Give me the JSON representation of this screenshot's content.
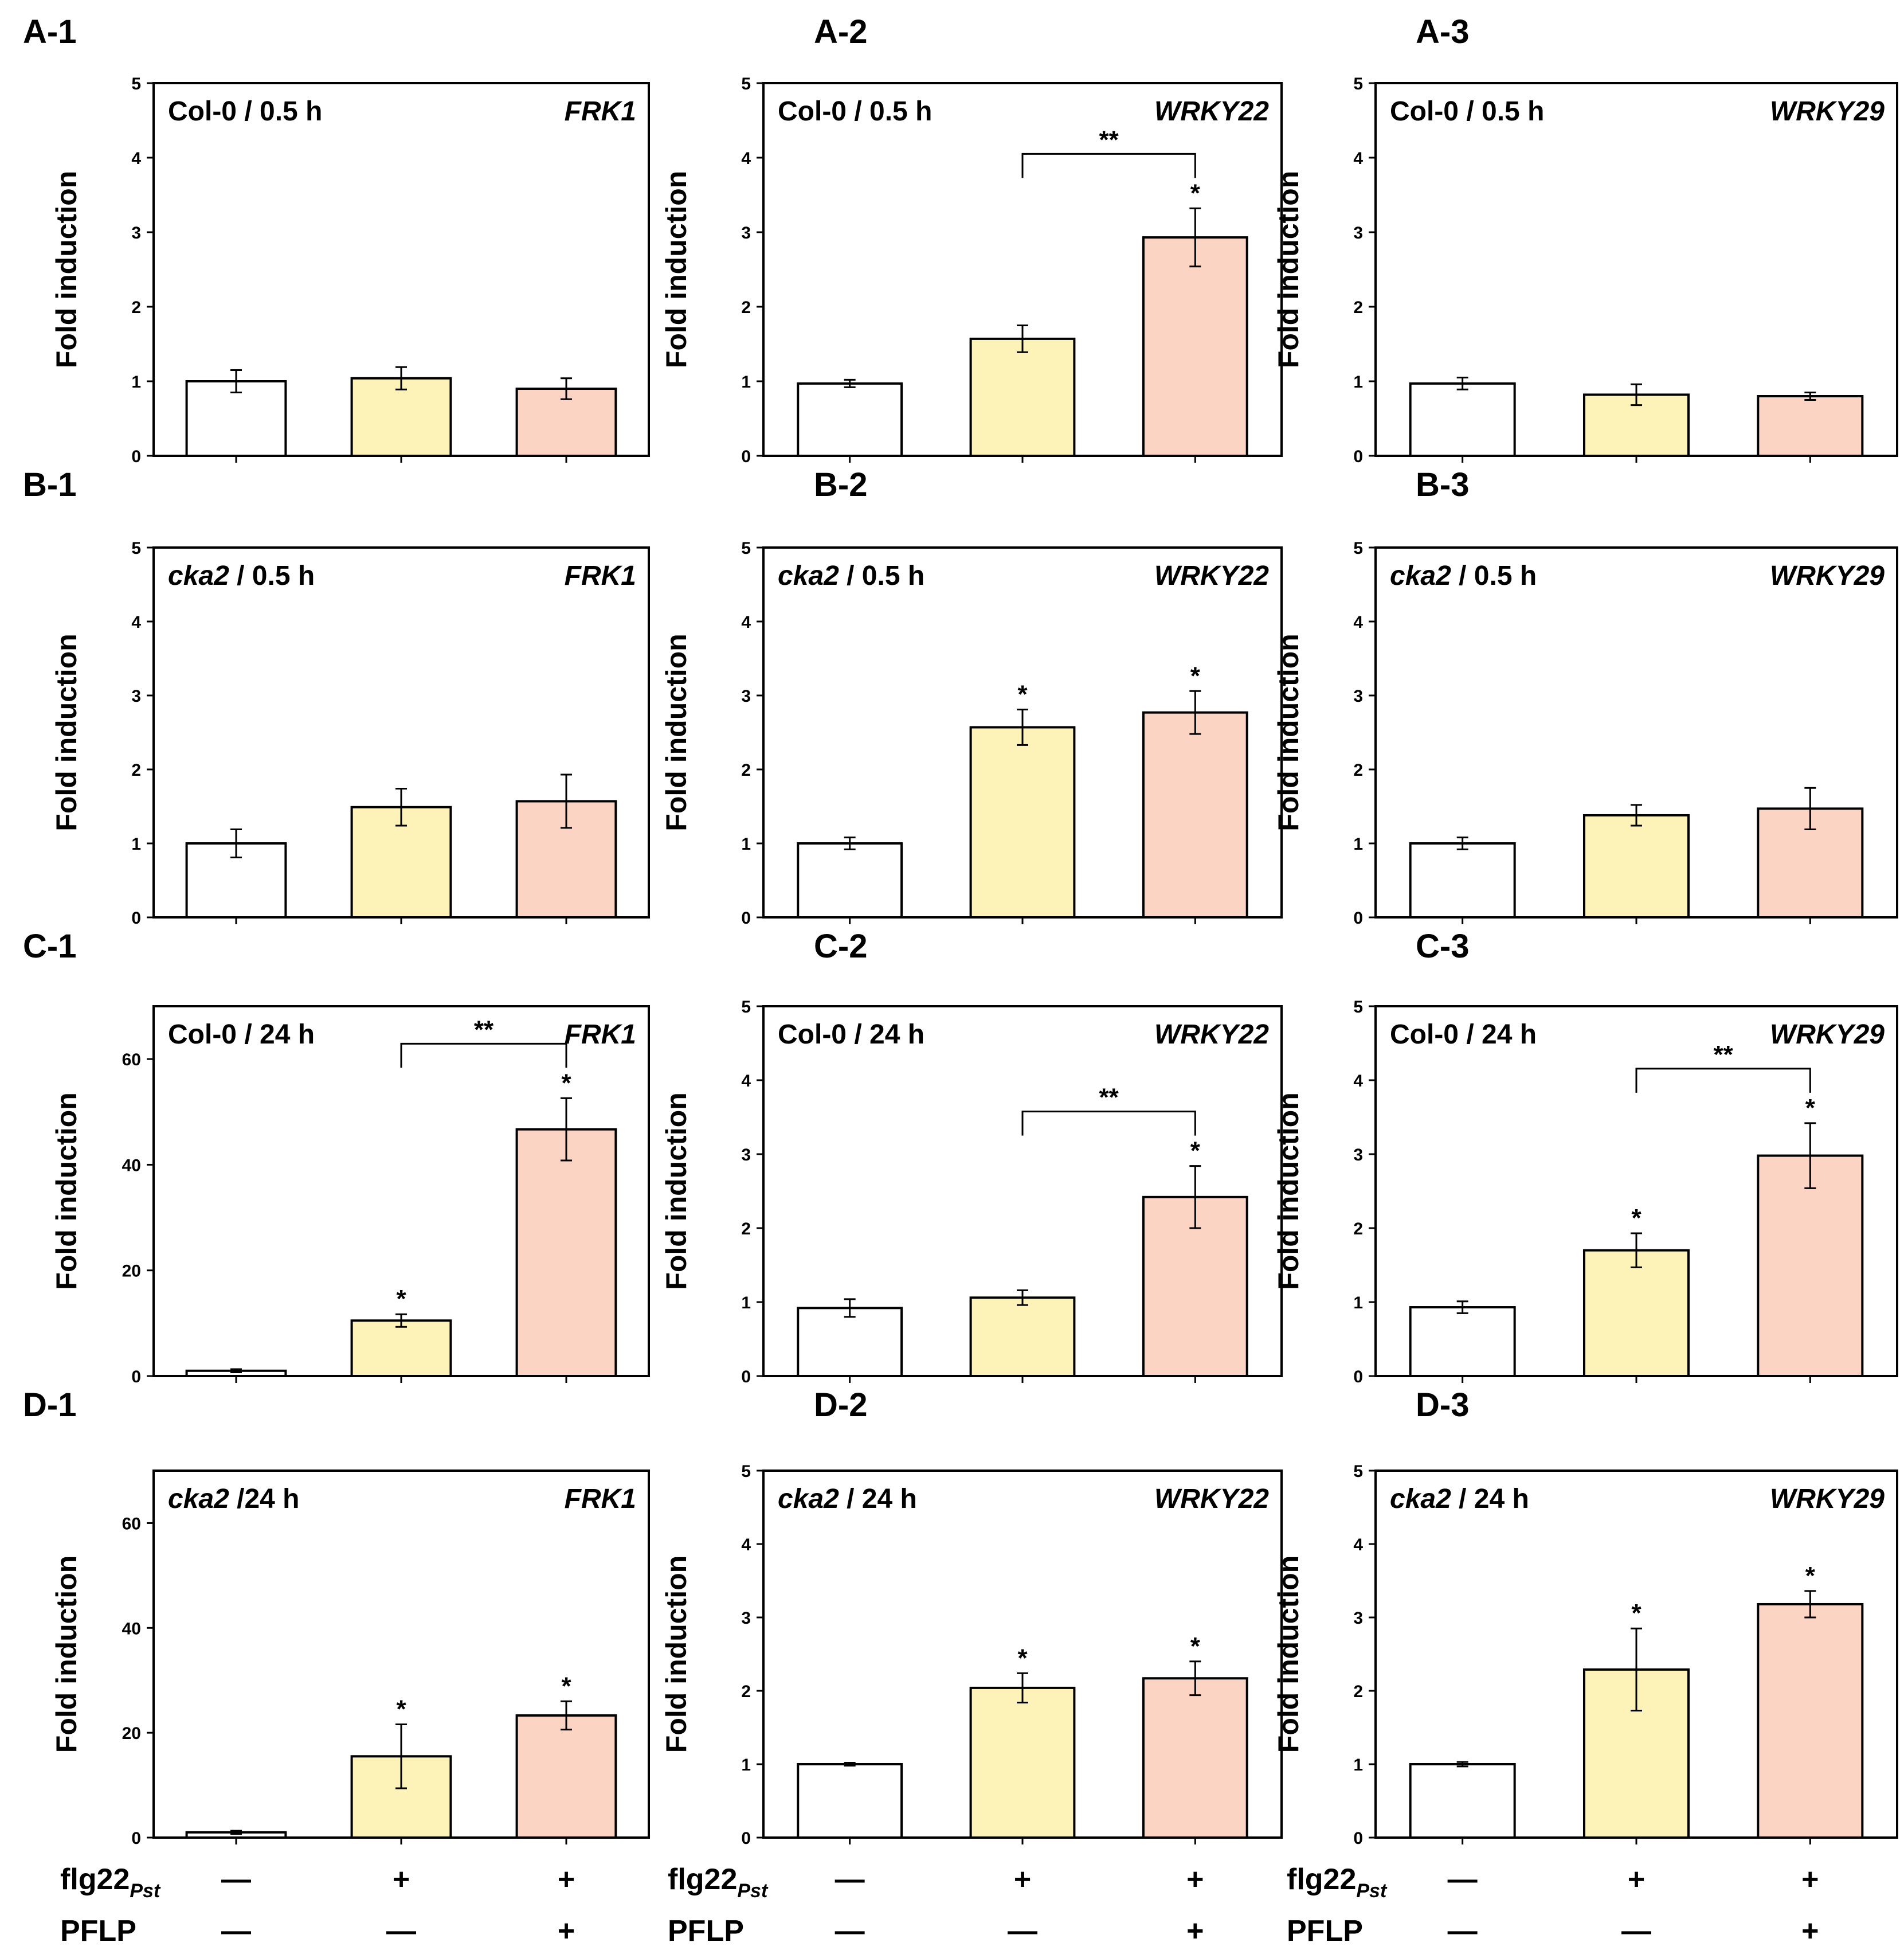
{
  "figure": {
    "y_label": "Fold induction",
    "colors": {
      "control": "#ffffff",
      "flg22": "#fdf3b8",
      "flg22_pflp": "#fbd4c4",
      "outline": "#000000"
    },
    "treatment_rows": [
      {
        "label": "flg22",
        "subscript": "Pst",
        "signs": [
          "—",
          "+",
          "+"
        ]
      },
      {
        "label": "PFLP",
        "subscript": "",
        "signs": [
          "—",
          "—",
          "+"
        ]
      }
    ]
  },
  "chart_data": [
    {
      "id": "A-1",
      "type": "bar",
      "genotype": "Col-0",
      "genotype_italic": false,
      "time": " / 0.5 h",
      "gene": "FRK1",
      "categories": [
        "control",
        "flg22Pst",
        "flg22Pst + PFLP"
      ],
      "values": [
        1.0,
        1.04,
        0.9
      ],
      "errors": [
        0.15,
        0.15,
        0.14
      ],
      "ylim": [
        0,
        5
      ],
      "yticks": [
        0,
        1,
        2,
        3,
        4,
        5
      ],
      "stars": [
        "",
        "",
        ""
      ],
      "bracket": null
    },
    {
      "id": "A-2",
      "type": "bar",
      "genotype": "Col-0",
      "genotype_italic": false,
      "time": " / 0.5 h",
      "gene": "WRKY22",
      "categories": [
        "control",
        "flg22Pst",
        "flg22Pst + PFLP"
      ],
      "values": [
        0.97,
        1.57,
        2.93
      ],
      "errors": [
        0.05,
        0.18,
        0.39
      ],
      "ylim": [
        0,
        5
      ],
      "yticks": [
        0,
        1,
        2,
        3,
        4,
        5
      ],
      "stars": [
        "",
        "",
        "*"
      ],
      "bracket": {
        "from": 1,
        "to": 2,
        "text": "**"
      }
    },
    {
      "id": "A-3",
      "type": "bar",
      "genotype": "Col-0",
      "genotype_italic": false,
      "time": " / 0.5 h",
      "gene": "WRKY29",
      "categories": [
        "control",
        "flg22Pst",
        "flg22Pst + PFLP"
      ],
      "values": [
        0.97,
        0.82,
        0.8
      ],
      "errors": [
        0.08,
        0.14,
        0.05
      ],
      "ylim": [
        0,
        5
      ],
      "yticks": [
        0,
        1,
        2,
        3,
        4,
        5
      ],
      "stars": [
        "",
        "",
        ""
      ],
      "bracket": null
    },
    {
      "id": "B-1",
      "type": "bar",
      "genotype": "cka2",
      "genotype_italic": true,
      "time": " / 0.5 h",
      "gene": "FRK1",
      "categories": [
        "control",
        "flg22Pst",
        "flg22Pst + PFLP"
      ],
      "values": [
        1.0,
        1.49,
        1.57
      ],
      "errors": [
        0.19,
        0.25,
        0.36
      ],
      "ylim": [
        0,
        5
      ],
      "yticks": [
        0,
        1,
        2,
        3,
        4,
        5
      ],
      "stars": [
        "",
        "",
        ""
      ],
      "bracket": null
    },
    {
      "id": "B-2",
      "type": "bar",
      "genotype": "cka2",
      "genotype_italic": true,
      "time": " / 0.5 h",
      "gene": "WRKY22",
      "categories": [
        "control",
        "flg22Pst",
        "flg22Pst + PFLP"
      ],
      "values": [
        1.0,
        2.57,
        2.77
      ],
      "errors": [
        0.08,
        0.24,
        0.29
      ],
      "ylim": [
        0,
        5
      ],
      "yticks": [
        0,
        1,
        2,
        3,
        4,
        5
      ],
      "stars": [
        "",
        "*",
        "*"
      ],
      "bracket": null
    },
    {
      "id": "B-3",
      "type": "bar",
      "genotype": "cka2",
      "genotype_italic": true,
      "time": " / 0.5 h",
      "gene": "WRKY29",
      "categories": [
        "control",
        "flg22Pst",
        "flg22Pst + PFLP"
      ],
      "values": [
        1.0,
        1.38,
        1.47
      ],
      "errors": [
        0.08,
        0.14,
        0.28
      ],
      "ylim": [
        0,
        5
      ],
      "yticks": [
        0,
        1,
        2,
        3,
        4,
        5
      ],
      "stars": [
        "",
        "",
        ""
      ],
      "bracket": null
    },
    {
      "id": "C-1",
      "type": "bar",
      "genotype": "Col-0",
      "genotype_italic": false,
      "time": " / 24 h",
      "gene": "FRK1",
      "categories": [
        "control",
        "flg22Pst",
        "flg22Pst + PFLP"
      ],
      "values": [
        1.0,
        10.5,
        46.7
      ],
      "errors": [
        0.3,
        1.2,
        5.9
      ],
      "ylim": [
        0,
        70
      ],
      "yticks": [
        0,
        20,
        40,
        60
      ],
      "stars": [
        "",
        "*",
        "*"
      ],
      "bracket": {
        "from": 1,
        "to": 2,
        "text": "**"
      }
    },
    {
      "id": "C-2",
      "type": "bar",
      "genotype": "Col-0",
      "genotype_italic": false,
      "time": " / 24 h",
      "gene": "WRKY22",
      "categories": [
        "control",
        "flg22Pst",
        "flg22Pst + PFLP"
      ],
      "values": [
        0.92,
        1.06,
        2.42
      ],
      "errors": [
        0.12,
        0.1,
        0.42
      ],
      "ylim": [
        0,
        5
      ],
      "yticks": [
        0,
        1,
        2,
        3,
        4,
        5
      ],
      "stars": [
        "",
        "",
        "*"
      ],
      "bracket": {
        "from": 1,
        "to": 2,
        "text": "**"
      }
    },
    {
      "id": "C-3",
      "type": "bar",
      "genotype": "Col-0",
      "genotype_italic": false,
      "time": " / 24 h",
      "gene": "WRKY29",
      "categories": [
        "control",
        "flg22Pst",
        "flg22Pst + PFLP"
      ],
      "values": [
        0.93,
        1.7,
        2.98
      ],
      "errors": [
        0.08,
        0.23,
        0.44
      ],
      "ylim": [
        0,
        5
      ],
      "yticks": [
        0,
        1,
        2,
        3,
        4,
        5
      ],
      "stars": [
        "",
        "*",
        "*"
      ],
      "bracket": {
        "from": 1,
        "to": 2,
        "text": "**"
      }
    },
    {
      "id": "D-1",
      "type": "bar",
      "genotype": "cka2",
      "genotype_italic": true,
      "time": " /24 h",
      "gene": "FRK1",
      "categories": [
        "control",
        "flg22Pst",
        "flg22Pst + PFLP"
      ],
      "values": [
        1.0,
        15.5,
        23.3
      ],
      "errors": [
        0.3,
        6.1,
        2.7
      ],
      "ylim": [
        0,
        70
      ],
      "yticks": [
        0,
        20,
        40,
        60
      ],
      "stars": [
        "",
        "*",
        "*"
      ],
      "bracket": null
    },
    {
      "id": "D-2",
      "type": "bar",
      "genotype": "cka2",
      "genotype_italic": true,
      "time": " / 24 h",
      "gene": "WRKY22",
      "categories": [
        "control",
        "flg22Pst",
        "flg22Pst + PFLP"
      ],
      "values": [
        1.0,
        2.04,
        2.17
      ],
      "errors": [
        0.02,
        0.2,
        0.23
      ],
      "ylim": [
        0,
        5
      ],
      "yticks": [
        0,
        1,
        2,
        3,
        4,
        5
      ],
      "stars": [
        "",
        "*",
        "*"
      ],
      "bracket": null
    },
    {
      "id": "D-3",
      "type": "bar",
      "genotype": "cka2",
      "genotype_italic": true,
      "time": " / 24 h",
      "gene": "WRKY29",
      "categories": [
        "control",
        "flg22Pst",
        "flg22Pst + PFLP"
      ],
      "values": [
        1.0,
        2.29,
        3.18
      ],
      "errors": [
        0.03,
        0.56,
        0.18
      ],
      "ylim": [
        0,
        5
      ],
      "yticks": [
        0,
        1,
        2,
        3,
        4,
        5
      ],
      "stars": [
        "",
        "*",
        "*"
      ],
      "bracket": null
    }
  ]
}
